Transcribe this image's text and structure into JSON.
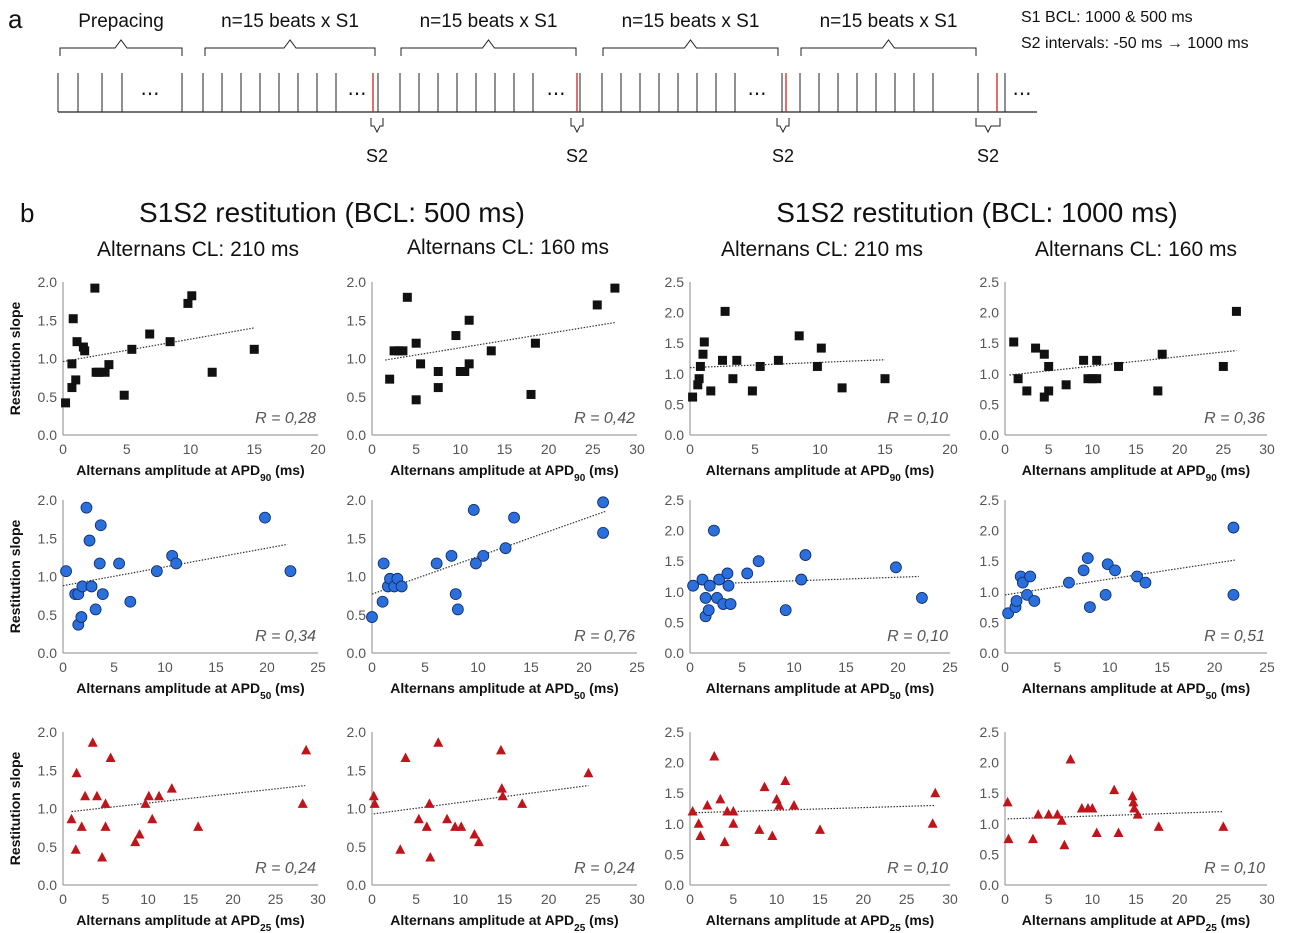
{
  "panel_a": {
    "letter": "a",
    "groups": [
      {
        "label": "Prepacing"
      },
      {
        "label": "n=15 beats x S1"
      },
      {
        "label": "n=15 beats x S1"
      },
      {
        "label": "n=15 beats x S1"
      },
      {
        "label": "n=15 beats x S1"
      }
    ],
    "s2_label": "S2",
    "ellipsis": "⋯",
    "info_line1": "S1 BCL: 1000 & 500 ms",
    "info_line2": "S2 intervals: -50 ms → 1000 ms"
  },
  "panel_b": {
    "letter": "b",
    "group_titles": [
      "S1S2 restitution (BCL: 500 ms)",
      "S1S2 restitution (BCL: 1000 ms)"
    ],
    "column_titles": [
      "Alternans CL: 210 ms",
      "Alternans CL: 160 ms",
      "Alternans CL: 210 ms",
      "Alternans CL: 160 ms"
    ],
    "ylabel": "Restitution slope",
    "xlabel_prefix": "Alternans amplitude at APD",
    "xlabel_suffix": " (ms)",
    "row_subscripts": [
      "90",
      "50",
      "25"
    ]
  },
  "colors": {
    "row1": "#111111",
    "row2": "#2a6fdb",
    "row3": "#c0141b"
  },
  "chart_data": [
    {
      "type": "scatter",
      "marker": "square",
      "row": 0,
      "col": 0,
      "xlim": [
        0,
        20
      ],
      "ylim": [
        0,
        2.0
      ],
      "xticks": [
        0,
        5,
        10,
        15,
        20
      ],
      "yticks": [
        0.0,
        0.5,
        1.0,
        1.5,
        2.0
      ],
      "r_text": "R = 0,28",
      "fit": [
        [
          0,
          0.96
        ],
        [
          15,
          1.4
        ]
      ],
      "points": [
        [
          0.2,
          0.42
        ],
        [
          0.7,
          0.62
        ],
        [
          0.7,
          0.93
        ],
        [
          0.8,
          1.52
        ],
        [
          1.0,
          0.72
        ],
        [
          1.1,
          1.22
        ],
        [
          1.6,
          1.15
        ],
        [
          1.7,
          1.1
        ],
        [
          2.5,
          1.92
        ],
        [
          2.6,
          0.82
        ],
        [
          2.8,
          0.82
        ],
        [
          3.3,
          0.82
        ],
        [
          3.6,
          0.92
        ],
        [
          4.8,
          0.52
        ],
        [
          5.4,
          1.12
        ],
        [
          6.8,
          1.32
        ],
        [
          8.4,
          1.22
        ],
        [
          9.8,
          1.72
        ],
        [
          10.1,
          1.82
        ],
        [
          11.7,
          0.82
        ],
        [
          15.0,
          1.12
        ]
      ]
    },
    {
      "type": "scatter",
      "marker": "square",
      "row": 0,
      "col": 1,
      "xlim": [
        0,
        30
      ],
      "ylim": [
        0,
        2.0
      ],
      "xticks": [
        0,
        5,
        10,
        15,
        20,
        25,
        30
      ],
      "yticks": [
        0.0,
        0.5,
        1.0,
        1.5,
        2.0
      ],
      "r_text": "R = 0,42",
      "fit": [
        [
          1.5,
          0.98
        ],
        [
          27.5,
          1.47
        ]
      ],
      "points": [
        [
          2,
          0.73
        ],
        [
          2.5,
          1.1
        ],
        [
          3,
          1.1
        ],
        [
          3.5,
          1.1
        ],
        [
          4,
          1.8
        ],
        [
          5,
          0.46
        ],
        [
          5,
          1.2
        ],
        [
          5.5,
          0.93
        ],
        [
          7.5,
          0.62
        ],
        [
          7.5,
          0.83
        ],
        [
          9.5,
          1.3
        ],
        [
          10,
          0.83
        ],
        [
          10.5,
          0.83
        ],
        [
          11,
          0.93
        ],
        [
          11,
          1.5
        ],
        [
          13.5,
          1.1
        ],
        [
          18,
          0.53
        ],
        [
          18.5,
          1.2
        ],
        [
          25.5,
          1.7
        ],
        [
          27.5,
          1.92
        ]
      ]
    },
    {
      "type": "scatter",
      "marker": "square",
      "row": 0,
      "col": 2,
      "xlim": [
        0,
        20
      ],
      "ylim": [
        0,
        2.5
      ],
      "xticks": [
        0,
        5,
        10,
        15,
        20
      ],
      "yticks": [
        0.0,
        0.5,
        1.0,
        1.5,
        2.0,
        2.5
      ],
      "r_text": "R = 0,10",
      "fit": [
        [
          0,
          1.1
        ],
        [
          15,
          1.23
        ]
      ],
      "points": [
        [
          0.2,
          0.62
        ],
        [
          0.6,
          0.82
        ],
        [
          0.7,
          0.92
        ],
        [
          0.8,
          1.12
        ],
        [
          1.0,
          1.32
        ],
        [
          1.1,
          1.52
        ],
        [
          1.6,
          0.72
        ],
        [
          2.5,
          1.22
        ],
        [
          2.7,
          2.02
        ],
        [
          3.3,
          0.92
        ],
        [
          3.6,
          1.22
        ],
        [
          4.8,
          0.72
        ],
        [
          5.4,
          1.12
        ],
        [
          6.8,
          1.22
        ],
        [
          8.4,
          1.62
        ],
        [
          9.8,
          1.12
        ],
        [
          10.1,
          1.42
        ],
        [
          11.7,
          0.77
        ],
        [
          15.0,
          0.92
        ]
      ]
    },
    {
      "type": "scatter",
      "marker": "square",
      "row": 0,
      "col": 3,
      "xlim": [
        0,
        30
      ],
      "ylim": [
        0,
        2.5
      ],
      "xticks": [
        0,
        5,
        10,
        15,
        20,
        25,
        30
      ],
      "yticks": [
        0.0,
        0.5,
        1.0,
        1.5,
        2.0,
        2.5
      ],
      "r_text": "R = 0,36",
      "fit": [
        [
          0.5,
          0.98
        ],
        [
          26.5,
          1.38
        ]
      ],
      "points": [
        [
          1,
          1.52
        ],
        [
          1.5,
          0.92
        ],
        [
          2.5,
          0.72
        ],
        [
          3.5,
          1.42
        ],
        [
          4.5,
          1.32
        ],
        [
          4.5,
          0.62
        ],
        [
          5,
          1.12
        ],
        [
          5,
          0.72
        ],
        [
          7,
          0.82
        ],
        [
          9,
          1.22
        ],
        [
          9.5,
          0.92
        ],
        [
          10,
          0.92
        ],
        [
          10.5,
          1.22
        ],
        [
          10.5,
          0.92
        ],
        [
          13,
          1.12
        ],
        [
          17.5,
          0.72
        ],
        [
          18,
          1.32
        ],
        [
          25,
          1.12
        ],
        [
          26.5,
          2.02
        ]
      ]
    },
    {
      "type": "scatter",
      "marker": "circle",
      "row": 1,
      "col": 0,
      "xlim": [
        0,
        25
      ],
      "ylim": [
        0,
        2.0
      ],
      "xticks": [
        0,
        5,
        10,
        15,
        20,
        25
      ],
      "yticks": [
        0.0,
        0.5,
        1.0,
        1.5,
        2.0
      ],
      "r_text": "R = 0,34",
      "fit": [
        [
          0,
          0.88
        ],
        [
          22,
          1.42
        ]
      ],
      "points": [
        [
          0.3,
          1.07
        ],
        [
          1.2,
          0.77
        ],
        [
          1.5,
          0.37
        ],
        [
          1.5,
          0.77
        ],
        [
          1.8,
          0.47
        ],
        [
          1.9,
          0.87
        ],
        [
          2.3,
          1.9
        ],
        [
          2.6,
          1.47
        ],
        [
          2.8,
          0.87
        ],
        [
          3.2,
          0.57
        ],
        [
          3.6,
          1.17
        ],
        [
          3.7,
          1.67
        ],
        [
          3.9,
          0.77
        ],
        [
          5.5,
          1.17
        ],
        [
          6.6,
          0.67
        ],
        [
          9.2,
          1.07
        ],
        [
          10.7,
          1.27
        ],
        [
          11.1,
          1.17
        ],
        [
          19.8,
          1.77
        ],
        [
          22.3,
          1.07
        ]
      ]
    },
    {
      "type": "scatter",
      "marker": "circle",
      "row": 1,
      "col": 1,
      "xlim": [
        0,
        25
      ],
      "ylim": [
        0,
        2.0
      ],
      "xticks": [
        0,
        5,
        10,
        15,
        20,
        25
      ],
      "yticks": [
        0.0,
        0.5,
        1.0,
        1.5,
        2.0
      ],
      "r_text": "R = 0,76",
      "fit": [
        [
          0,
          0.77
        ],
        [
          22,
          1.85
        ]
      ],
      "points": [
        [
          0,
          0.47
        ],
        [
          1,
          0.67
        ],
        [
          1.1,
          1.17
        ],
        [
          1.5,
          0.87
        ],
        [
          1.7,
          0.97
        ],
        [
          2.1,
          0.87
        ],
        [
          2.4,
          0.97
        ],
        [
          2.8,
          0.87
        ],
        [
          6.1,
          1.17
        ],
        [
          7.5,
          1.27
        ],
        [
          7.9,
          0.77
        ],
        [
          8.1,
          0.57
        ],
        [
          9.6,
          1.87
        ],
        [
          9.8,
          1.17
        ],
        [
          10.5,
          1.27
        ],
        [
          12.6,
          1.37
        ],
        [
          13.4,
          1.77
        ],
        [
          21.8,
          1.97
        ],
        [
          21.8,
          1.57
        ]
      ]
    },
    {
      "type": "scatter",
      "marker": "circle",
      "row": 1,
      "col": 2,
      "xlim": [
        0,
        25
      ],
      "ylim": [
        0,
        2.5
      ],
      "xticks": [
        0,
        5,
        10,
        15,
        20,
        25
      ],
      "yticks": [
        0.0,
        0.5,
        1.0,
        1.5,
        2.0,
        2.5
      ],
      "r_text": "R = 0,10",
      "fit": [
        [
          0,
          1.12
        ],
        [
          22,
          1.25
        ]
      ],
      "points": [
        [
          0.3,
          1.1
        ],
        [
          1.2,
          1.2
        ],
        [
          1.5,
          0.9
        ],
        [
          1.5,
          0.6
        ],
        [
          1.8,
          0.7
        ],
        [
          1.9,
          1.1
        ],
        [
          2.3,
          2.0
        ],
        [
          2.6,
          0.9
        ],
        [
          2.8,
          1.2
        ],
        [
          3.2,
          0.8
        ],
        [
          3.6,
          1.3
        ],
        [
          3.7,
          1.1
        ],
        [
          3.9,
          0.8
        ],
        [
          5.5,
          1.3
        ],
        [
          6.6,
          1.5
        ],
        [
          9.2,
          0.7
        ],
        [
          10.7,
          1.2
        ],
        [
          11.1,
          1.6
        ],
        [
          19.8,
          1.4
        ],
        [
          22.3,
          0.9
        ]
      ]
    },
    {
      "type": "scatter",
      "marker": "circle",
      "row": 1,
      "col": 3,
      "xlim": [
        0,
        25
      ],
      "ylim": [
        0,
        2.5
      ],
      "xticks": [
        0,
        5,
        10,
        15,
        20,
        25
      ],
      "yticks": [
        0.0,
        0.5,
        1.0,
        1.5,
        2.0,
        2.5
      ],
      "r_text": "R = 0,51",
      "fit": [
        [
          0,
          0.95
        ],
        [
          22,
          1.52
        ]
      ],
      "points": [
        [
          0.3,
          0.65
        ],
        [
          1,
          0.75
        ],
        [
          1.1,
          0.85
        ],
        [
          1.5,
          1.25
        ],
        [
          1.7,
          1.15
        ],
        [
          2.1,
          0.95
        ],
        [
          2.4,
          1.25
        ],
        [
          2.8,
          0.85
        ],
        [
          6.1,
          1.15
        ],
        [
          7.5,
          1.35
        ],
        [
          7.9,
          1.55
        ],
        [
          8.1,
          0.75
        ],
        [
          9.6,
          0.95
        ],
        [
          9.8,
          1.45
        ],
        [
          10.5,
          1.35
        ],
        [
          12.6,
          1.25
        ],
        [
          13.4,
          1.15
        ],
        [
          21.8,
          2.05
        ],
        [
          21.8,
          0.95
        ]
      ]
    },
    {
      "type": "scatter",
      "marker": "triangle",
      "row": 2,
      "col": 0,
      "xlim": [
        0,
        30
      ],
      "ylim": [
        0,
        2.0
      ],
      "xticks": [
        0,
        5,
        10,
        15,
        20,
        25,
        30
      ],
      "yticks": [
        0.0,
        0.5,
        1.0,
        1.5,
        2.0
      ],
      "r_text": "R = 0,24",
      "fit": [
        [
          1,
          0.96
        ],
        [
          28.5,
          1.3
        ]
      ],
      "points": [
        [
          1,
          0.86
        ],
        [
          1.5,
          0.46
        ],
        [
          1.6,
          1.46
        ],
        [
          2.2,
          0.76
        ],
        [
          2.6,
          1.16
        ],
        [
          3.5,
          1.86
        ],
        [
          4,
          1.16
        ],
        [
          4.6,
          0.36
        ],
        [
          5,
          1.06
        ],
        [
          5,
          0.76
        ],
        [
          5.6,
          1.66
        ],
        [
          8.5,
          0.56
        ],
        [
          9,
          0.66
        ],
        [
          9.7,
          1.06
        ],
        [
          10.1,
          1.16
        ],
        [
          10.5,
          0.86
        ],
        [
          11.3,
          1.16
        ],
        [
          12.8,
          1.26
        ],
        [
          15.9,
          0.76
        ],
        [
          28.2,
          1.06
        ],
        [
          28.6,
          1.76
        ]
      ]
    },
    {
      "type": "scatter",
      "marker": "triangle",
      "row": 2,
      "col": 1,
      "xlim": [
        0,
        30
      ],
      "ylim": [
        0,
        2.0
      ],
      "xticks": [
        0,
        5,
        10,
        15,
        20,
        25,
        30
      ],
      "yticks": [
        0.0,
        0.5,
        1.0,
        1.5,
        2.0
      ],
      "r_text": "R = 0,24",
      "fit": [
        [
          0.2,
          0.93
        ],
        [
          24.5,
          1.3
        ]
      ],
      "points": [
        [
          0.2,
          1.16
        ],
        [
          0.3,
          1.06
        ],
        [
          3.2,
          0.46
        ],
        [
          3.8,
          1.66
        ],
        [
          5.3,
          0.86
        ],
        [
          6.2,
          0.76
        ],
        [
          6.5,
          1.06
        ],
        [
          6.6,
          0.36
        ],
        [
          7.5,
          1.86
        ],
        [
          8.5,
          0.86
        ],
        [
          9.4,
          0.76
        ],
        [
          10.1,
          0.76
        ],
        [
          11.6,
          0.66
        ],
        [
          12.1,
          0.56
        ],
        [
          14.6,
          1.76
        ],
        [
          14.7,
          1.26
        ],
        [
          14.8,
          1.16
        ],
        [
          17,
          1.06
        ],
        [
          24.5,
          1.46
        ]
      ]
    },
    {
      "type": "scatter",
      "marker": "triangle",
      "row": 2,
      "col": 2,
      "xlim": [
        0,
        30
      ],
      "ylim": [
        0,
        2.5
      ],
      "xticks": [
        0,
        5,
        10,
        15,
        20,
        25,
        30
      ],
      "yticks": [
        0.0,
        0.5,
        1.0,
        1.5,
        2.0,
        2.5
      ],
      "r_text": "R = 0,10",
      "fit": [
        [
          0.3,
          1.18
        ],
        [
          28.3,
          1.3
        ]
      ],
      "points": [
        [
          0.3,
          1.2
        ],
        [
          1,
          1.0
        ],
        [
          1.2,
          0.8
        ],
        [
          2,
          1.3
        ],
        [
          2.8,
          2.1
        ],
        [
          3.5,
          1.4
        ],
        [
          4,
          0.7
        ],
        [
          4.3,
          1.2
        ],
        [
          5,
          1.2
        ],
        [
          5,
          1.0
        ],
        [
          8,
          0.9
        ],
        [
          8.6,
          1.6
        ],
        [
          9.5,
          0.8
        ],
        [
          10,
          1.4
        ],
        [
          10.3,
          1.3
        ],
        [
          11,
          1.7
        ],
        [
          12,
          1.3
        ],
        [
          15,
          0.9
        ],
        [
          28,
          1.0
        ],
        [
          28.3,
          1.5
        ]
      ]
    },
    {
      "type": "scatter",
      "marker": "triangle",
      "row": 2,
      "col": 3,
      "xlim": [
        0,
        30
      ],
      "ylim": [
        0,
        2.5
      ],
      "xticks": [
        0,
        5,
        10,
        15,
        20,
        25,
        30
      ],
      "yticks": [
        0.0,
        0.5,
        1.0,
        1.5,
        2.0,
        2.5
      ],
      "r_text": "R = 0,10",
      "fit": [
        [
          0.3,
          1.08
        ],
        [
          25,
          1.2
        ]
      ],
      "points": [
        [
          0.3,
          1.35
        ],
        [
          0.4,
          0.75
        ],
        [
          3.2,
          0.75
        ],
        [
          3.8,
          1.15
        ],
        [
          5,
          1.15
        ],
        [
          6,
          1.15
        ],
        [
          6.5,
          1.05
        ],
        [
          6.8,
          0.65
        ],
        [
          7.5,
          2.05
        ],
        [
          8.8,
          1.25
        ],
        [
          9.5,
          1.25
        ],
        [
          10,
          1.25
        ],
        [
          10.5,
          0.85
        ],
        [
          12.5,
          1.55
        ],
        [
          13,
          0.85
        ],
        [
          14.6,
          1.45
        ],
        [
          14.7,
          1.35
        ],
        [
          14.8,
          1.25
        ],
        [
          15.2,
          1.15
        ],
        [
          17.6,
          0.95
        ],
        [
          25,
          0.95
        ]
      ]
    }
  ]
}
